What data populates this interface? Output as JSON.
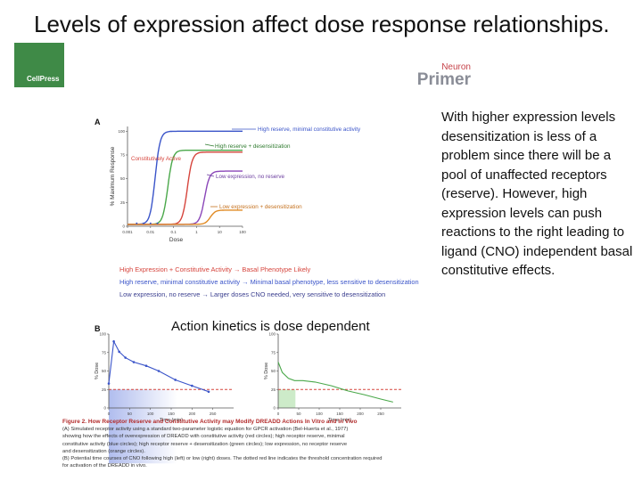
{
  "slide": {
    "title": "Levels of expression affect dose response relationships.",
    "side_text": "With higher expression levels desensitization is less of a problem since there will be a pool of unaffected receptors (reserve). However, high expression levels can push reactions to the right leading to ligand (CNO) independent basal constitutive effects.",
    "panel_b_caption": "Action kinetics is dose dependent"
  },
  "logos": {
    "publisher": "CellPress",
    "journal": "Neuron",
    "series": "Primer"
  },
  "figure": {
    "panel_a_label": "A",
    "panel_b_label": "B",
    "legend": [
      {
        "text": "High Expression + Constitutive Activity  →  Basal Phenotype Likely",
        "color": "#d6453d"
      },
      {
        "text": "High reserve, minimal constitutive activity  →  Minimal basal phenotype, less sensitive to desensitization",
        "color": "#3a54c9"
      },
      {
        "text": "Low expression, no reserve  →  Larger doses CNO needed, very sensitive to desensitization",
        "color": "#3b3f8f"
      }
    ],
    "caption_heading": "Figure 2.  How Receptor Reserve and Constitutive Activity may Modify DREADD Actions In Vitro and In Vivo",
    "caption_lines": [
      "(A) Simulated receptor activity using a standard two-parameter logistic equation for GPCR activation (Bel-Huerta et al., 1977)",
      "showing how the effects of overexpression of DREADD with constitutive activity (red circles); high receptor reserve, minimal",
      "constitutive activity (blue circles); high receptor reserve + desensitization (green circles); low expression, no receptor reserve",
      "and desensitization (orange circles).",
      "(B) Potential time courses of CNO following high (left) or low (right) doses. The dotted red line indicates the threshold concentration required",
      "for activation of the DREADD in vivo."
    ]
  },
  "chart_data": [
    {
      "type": "line",
      "panel": "A",
      "xlabel": "Dose",
      "ylabel": "% Maximum Response",
      "x_ticks": [
        "0.001",
        "0.01",
        "0.1",
        "1",
        "10",
        "100"
      ],
      "y_ticks": [
        "0",
        "25",
        "50",
        "75",
        "100"
      ],
      "xlim": [
        -3,
        2
      ],
      "ylim": [
        0,
        105
      ],
      "log_x": true,
      "series": [
        {
          "name": "High reserve, minimal constitutive activity",
          "color": "#3a54c9",
          "ec50_log": -1.8,
          "baseline": 2,
          "top": 100
        },
        {
          "name": "High reserve + desensitization",
          "color": "#4aa84a",
          "ec50_log": -1.25,
          "baseline": 2,
          "top": 80
        },
        {
          "name": "Constitutively Active",
          "color": "#d6453d",
          "ec50_log": -0.4,
          "baseline": 2,
          "top": 78
        },
        {
          "name": "Low expression, no reserve",
          "color": "#8a46b8",
          "ec50_log": 0.35,
          "baseline": 2,
          "top": 58
        },
        {
          "name": "Low expression + desensitization",
          "color": "#e08a23",
          "ec50_log": 0.6,
          "baseline": 2,
          "top": 17
        }
      ],
      "annotations": [
        {
          "text": "High reserve, minimal constitutive activity",
          "color": "#3a54c9"
        },
        {
          "text": "High reserve + desensitization",
          "color": "#2e7a2e"
        },
        {
          "text": "Constitutively Active",
          "color": "#d6453d"
        },
        {
          "text": "Low expression, no reserve",
          "color": "#6a3c9e"
        },
        {
          "text": "Low expression + desensitization",
          "color": "#c4701d"
        }
      ]
    },
    {
      "type": "line",
      "panel": "B-left",
      "xlabel": "Time (min)",
      "ylabel": "% Dose",
      "x_ticks": [
        "0",
        "50",
        "100",
        "150",
        "200",
        "250"
      ],
      "y_ticks": [
        "0",
        "25",
        "50",
        "75",
        "100"
      ],
      "xlim": [
        0,
        300
      ],
      "ylim": [
        0,
        100
      ],
      "x": [
        0,
        12,
        25,
        40,
        60,
        90,
        120,
        160,
        200,
        240
      ],
      "values": [
        33,
        90,
        76,
        68,
        62,
        57,
        50,
        38,
        30,
        22
      ],
      "threshold": 25,
      "color": "#3a54c9"
    },
    {
      "type": "line",
      "panel": "B-right",
      "xlabel": "Time (min)",
      "ylabel": "% Dose",
      "x_ticks": [
        "0",
        "50",
        "100",
        "150",
        "200",
        "250"
      ],
      "y_ticks": [
        "0",
        "25",
        "50",
        "75",
        "100"
      ],
      "xlim": [
        0,
        300
      ],
      "ylim": [
        0,
        100
      ],
      "x": [
        0,
        10,
        25,
        40,
        60,
        90,
        130,
        170,
        210,
        250,
        280
      ],
      "values": [
        62,
        48,
        40,
        37,
        37,
        35,
        30,
        23,
        18,
        12,
        8
      ],
      "threshold": 25,
      "color": "#4aa84a"
    }
  ]
}
